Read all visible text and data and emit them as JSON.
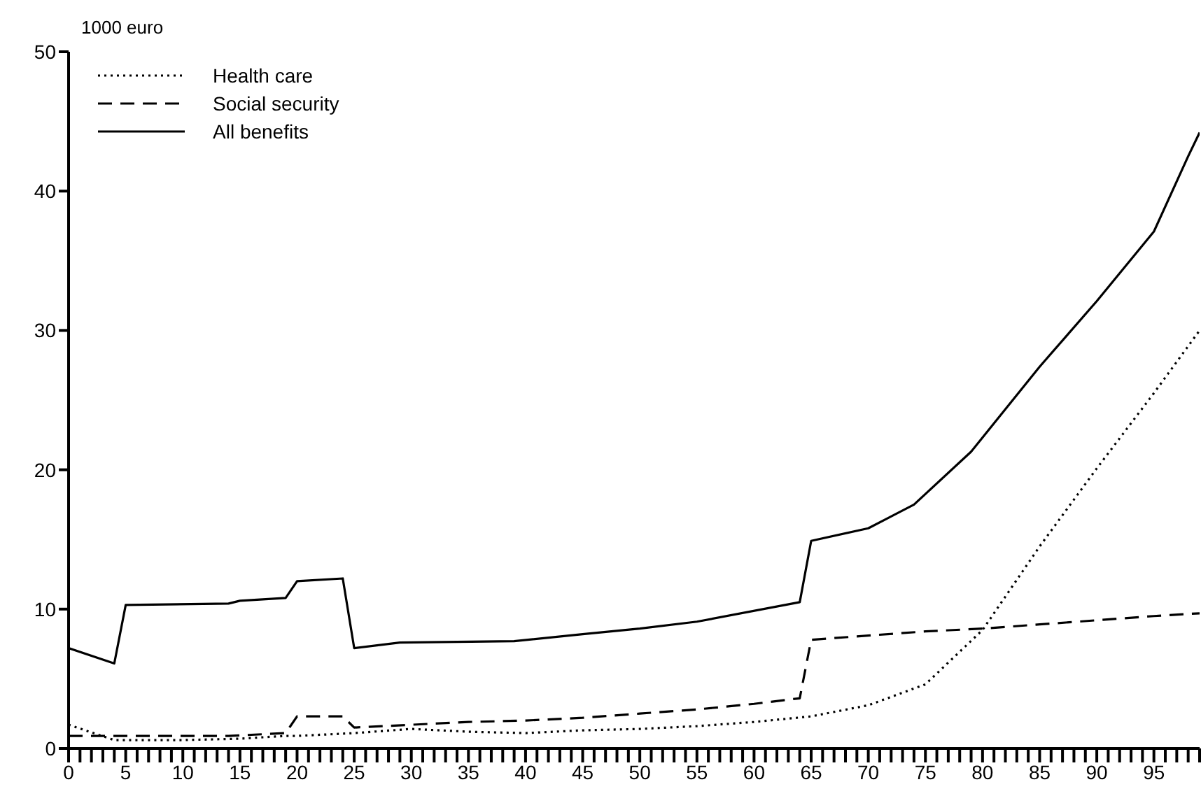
{
  "chart_data": {
    "type": "line",
    "ylabel": "1000 euro",
    "xlim": [
      0,
      99
    ],
    "ylim": [
      0,
      50
    ],
    "yticks": [
      0,
      10,
      20,
      30,
      40,
      50
    ],
    "xticks": [
      0,
      {
        "value": 1,
        "label": null
      },
      {
        "value": 2,
        "label": null
      },
      {
        "value": 3,
        "label": null
      },
      {
        "value": 4,
        "label": null
      },
      5,
      {
        "value": 6,
        "label": null
      },
      {
        "value": 7,
        "label": null
      },
      {
        "value": 8,
        "label": null
      },
      {
        "value": 9,
        "label": null
      },
      10,
      {
        "value": 11,
        "label": null
      },
      {
        "value": 12,
        "label": null
      },
      {
        "value": 13,
        "label": null
      },
      {
        "value": 14,
        "label": null
      },
      15,
      {
        "value": 16,
        "label": null
      },
      {
        "value": 17,
        "label": null
      },
      {
        "value": 18,
        "label": null
      },
      {
        "value": 19,
        "label": null
      },
      20,
      {
        "value": 21,
        "label": null
      },
      {
        "value": 22,
        "label": null
      },
      {
        "value": 23,
        "label": null
      },
      {
        "value": 24,
        "label": null
      },
      25,
      {
        "value": 26,
        "label": null
      },
      {
        "value": 27,
        "label": null
      },
      {
        "value": 28,
        "label": null
      },
      {
        "value": 29,
        "label": null
      },
      30,
      {
        "value": 31,
        "label": null
      },
      {
        "value": 32,
        "label": null
      },
      {
        "value": 33,
        "label": null
      },
      {
        "value": 34,
        "label": null
      },
      35,
      {
        "value": 36,
        "label": null
      },
      {
        "value": 37,
        "label": null
      },
      {
        "value": 38,
        "label": null
      },
      {
        "value": 39,
        "label": null
      },
      40,
      {
        "value": 41,
        "label": null
      },
      {
        "value": 42,
        "label": null
      },
      {
        "value": 43,
        "label": null
      },
      {
        "value": 44,
        "label": null
      },
      45,
      {
        "value": 46,
        "label": null
      },
      {
        "value": 47,
        "label": null
      },
      {
        "value": 48,
        "label": null
      },
      {
        "value": 49,
        "label": null
      },
      50,
      {
        "value": 51,
        "label": null
      },
      {
        "value": 52,
        "label": null
      },
      {
        "value": 53,
        "label": null
      },
      {
        "value": 54,
        "label": null
      },
      55,
      {
        "value": 56,
        "label": null
      },
      {
        "value": 57,
        "label": null
      },
      {
        "value": 58,
        "label": null
      },
      {
        "value": 59,
        "label": null
      },
      60,
      {
        "value": 61,
        "label": null
      },
      {
        "value": 62,
        "label": null
      },
      {
        "value": 63,
        "label": null
      },
      {
        "value": 64,
        "label": null
      },
      65,
      {
        "value": 66,
        "label": null
      },
      {
        "value": 67,
        "label": null
      },
      {
        "value": 68,
        "label": null
      },
      {
        "value": 69,
        "label": null
      },
      70,
      {
        "value": 71,
        "label": null
      },
      {
        "value": 72,
        "label": null
      },
      {
        "value": 73,
        "label": null
      },
      {
        "value": 74,
        "label": null
      },
      75,
      {
        "value": 76,
        "label": null
      },
      {
        "value": 77,
        "label": null
      },
      {
        "value": 78,
        "label": null
      },
      {
        "value": 79,
        "label": null
      },
      80,
      {
        "value": 81,
        "label": null
      },
      {
        "value": 82,
        "label": null
      },
      {
        "value": 83,
        "label": null
      },
      {
        "value": 84,
        "label": null
      },
      85,
      {
        "value": 86,
        "label": null
      },
      {
        "value": 87,
        "label": null
      },
      {
        "value": 88,
        "label": null
      },
      {
        "value": 89,
        "label": null
      },
      90,
      {
        "value": 91,
        "label": null
      },
      {
        "value": 92,
        "label": null
      },
      {
        "value": 93,
        "label": null
      },
      {
        "value": 94,
        "label": null
      },
      95,
      {
        "value": 96,
        "label": null
      },
      {
        "value": 97,
        "label": null
      },
      {
        "value": 98,
        "label": null
      },
      {
        "value": 99,
        "label": null
      }
    ],
    "grid": false,
    "legend": "top left",
    "marker": "none",
    "series": [
      {
        "name": "Health care",
        "color": "#000000",
        "line_style": "dotted",
        "x": [
          0,
          4,
          5,
          10,
          15,
          19,
          20,
          25,
          30,
          35,
          40,
          45,
          50,
          55,
          60,
          65,
          70,
          75,
          80,
          85,
          90,
          95,
          99
        ],
        "values": [
          1.7,
          0.6,
          0.6,
          0.6,
          0.7,
          0.9,
          0.9,
          1.1,
          1.4,
          1.2,
          1.1,
          1.3,
          1.4,
          1.6,
          1.9,
          2.3,
          3.1,
          4.6,
          8.5,
          14.5,
          20.1,
          25.5,
          30
        ]
      },
      {
        "name": "Social security",
        "color": "#000000",
        "line_style": "dashed",
        "x": [
          0,
          14,
          19,
          20,
          24,
          25,
          30,
          35,
          40,
          45,
          50,
          55,
          60,
          64,
          65,
          70,
          75,
          80,
          85,
          90,
          95,
          99
        ],
        "values": [
          0.9,
          0.9,
          1.1,
          2.3,
          2.3,
          1.5,
          1.7,
          1.9,
          2.0,
          2.2,
          2.5,
          2.8,
          3.2,
          3.6,
          7.8,
          8.1,
          8.4,
          8.6,
          8.9,
          9.2,
          9.5,
          9.7
        ]
      },
      {
        "name": "All benefits",
        "color": "#000000",
        "line_style": "solid",
        "x": [
          0,
          4,
          5,
          14,
          15,
          19,
          20,
          24,
          25,
          29,
          39,
          45,
          50,
          55,
          64,
          65,
          70,
          74,
          79,
          85,
          90,
          95,
          98,
          99
        ],
        "values": [
          7.2,
          6.1,
          10.3,
          10.4,
          10.6,
          10.8,
          12.0,
          12.2,
          7.2,
          7.6,
          7.7,
          8.2,
          8.6,
          9.1,
          10.5,
          14.9,
          15.8,
          17.5,
          21.3,
          27.4,
          32.1,
          37.1,
          42.5,
          44.2
        ]
      }
    ]
  }
}
